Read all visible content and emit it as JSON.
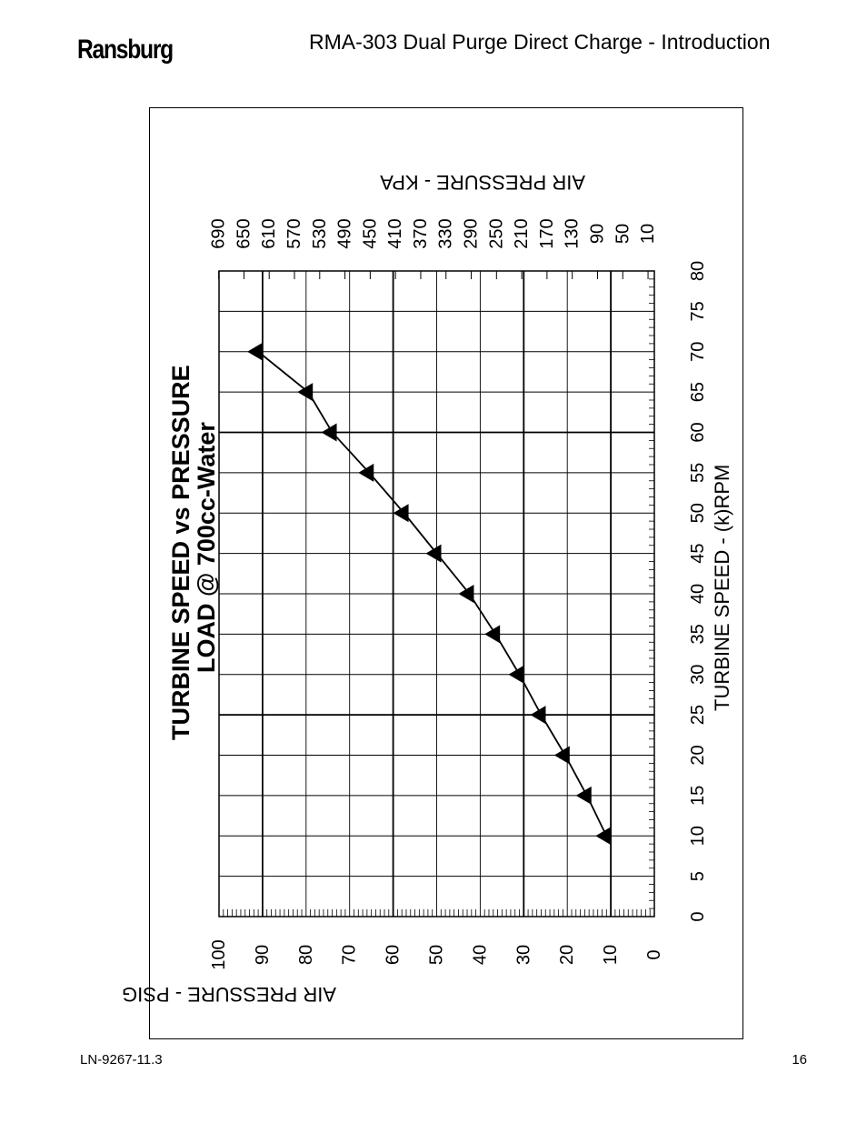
{
  "header": {
    "logo_text": "Ransburg",
    "doc_title": "RMA-303 Dual Purge Direct Charge - Introduction"
  },
  "footer": {
    "doc_number": "LN-9267-11.3",
    "page_number": "16"
  },
  "chart_data": {
    "type": "line",
    "orientation": "rotated 90° counter-clockwise on page",
    "title": "TURBINE SPEED vs PRESSURE",
    "subtitle": "LOAD @ 700cc-Water",
    "xlabel": "TURBINE SPEED - (k)RPM",
    "ylabel": "AIR PRESSURE - PSIG",
    "y2label": "AIR PRESSURE - KPA",
    "xlim": [
      0,
      80
    ],
    "ylim": [
      0,
      100
    ],
    "x_ticks": [
      "0",
      "5",
      "10",
      "15",
      "20",
      "25",
      "30",
      "35",
      "40",
      "45",
      "50",
      "55",
      "60",
      "65",
      "70",
      "75",
      "80"
    ],
    "y_ticks": [
      "0",
      "10",
      "20",
      "30",
      "40",
      "50",
      "60",
      "70",
      "80",
      "90",
      "100"
    ],
    "y2_ticks": [
      "10",
      "50",
      "90",
      "130",
      "170",
      "210",
      "250",
      "290",
      "330",
      "370",
      "410",
      "450",
      "490",
      "530",
      "570",
      "610",
      "650",
      "690"
    ],
    "grid": true,
    "marker": "triangle",
    "series": [
      {
        "x": [
          10,
          15,
          20,
          25,
          30,
          35,
          40,
          45,
          50,
          55,
          60,
          65,
          70
        ],
        "y": [
          11,
          15.5,
          20.5,
          26,
          31,
          36.5,
          42.5,
          50,
          57.5,
          65.5,
          74,
          79.5,
          91
        ]
      }
    ]
  }
}
